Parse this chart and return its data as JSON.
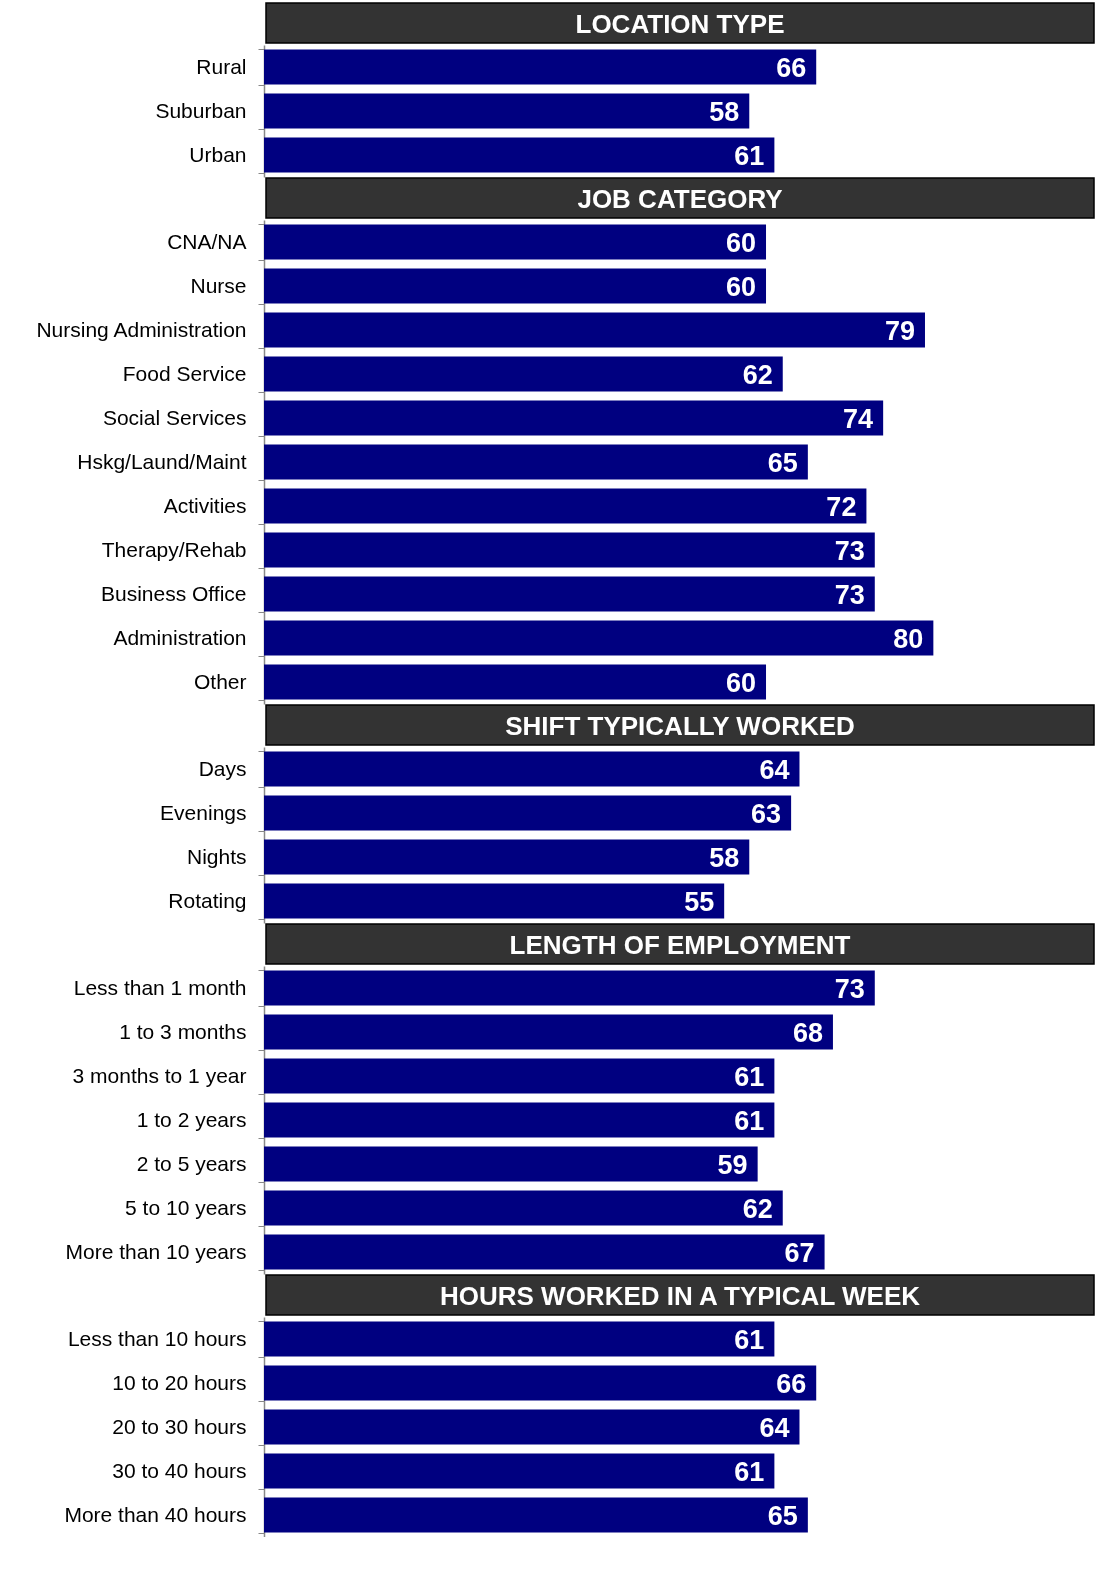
{
  "chart_data": [
    {
      "type": "bar",
      "orientation": "horizontal",
      "title": "LOCATION TYPE",
      "categories": [
        "Rural",
        "Suburban",
        "Urban"
      ],
      "values": [
        66,
        58,
        61
      ],
      "color": "#000080",
      "data_labels": true
    },
    {
      "type": "bar",
      "orientation": "horizontal",
      "title": "JOB CATEGORY",
      "categories": [
        "CNA/NA",
        "Nurse",
        "Nursing Administration",
        "Food Service",
        "Social Services",
        "Hskg/Laund/Maint",
        "Activities",
        "Therapy/Rehab",
        "Business Office",
        "Administration",
        "Other"
      ],
      "values": [
        60,
        60,
        79,
        62,
        74,
        65,
        72,
        73,
        73,
        80,
        60
      ],
      "color": "#000080",
      "data_labels": true
    },
    {
      "type": "bar",
      "orientation": "horizontal",
      "title": "SHIFT TYPICALLY WORKED",
      "categories": [
        "Days",
        "Evenings",
        "Nights",
        "Rotating"
      ],
      "values": [
        64,
        63,
        58,
        55
      ],
      "color": "#000080",
      "data_labels": true
    },
    {
      "type": "bar",
      "orientation": "horizontal",
      "title": "LENGTH OF EMPLOYMENT",
      "categories": [
        "Less than 1 month",
        "1 to 3 months",
        "3 months to 1 year",
        "1 to 2 years",
        "2 to 5 years",
        "5 to 10 years",
        "More than 10 years"
      ],
      "values": [
        73,
        68,
        61,
        61,
        59,
        62,
        67
      ],
      "color": "#000080",
      "data_labels": true
    },
    {
      "type": "bar",
      "orientation": "horizontal",
      "title": "HOURS WORKED IN A TYPICAL WEEK",
      "categories": [
        "Less than 10 hours",
        "10 to 20 hours",
        "20 to 30 hours",
        "30 to 40 hours",
        "More than 40 hours"
      ],
      "values": [
        61,
        66,
        64,
        61,
        65
      ],
      "color": "#000080",
      "data_labels": true
    }
  ]
}
